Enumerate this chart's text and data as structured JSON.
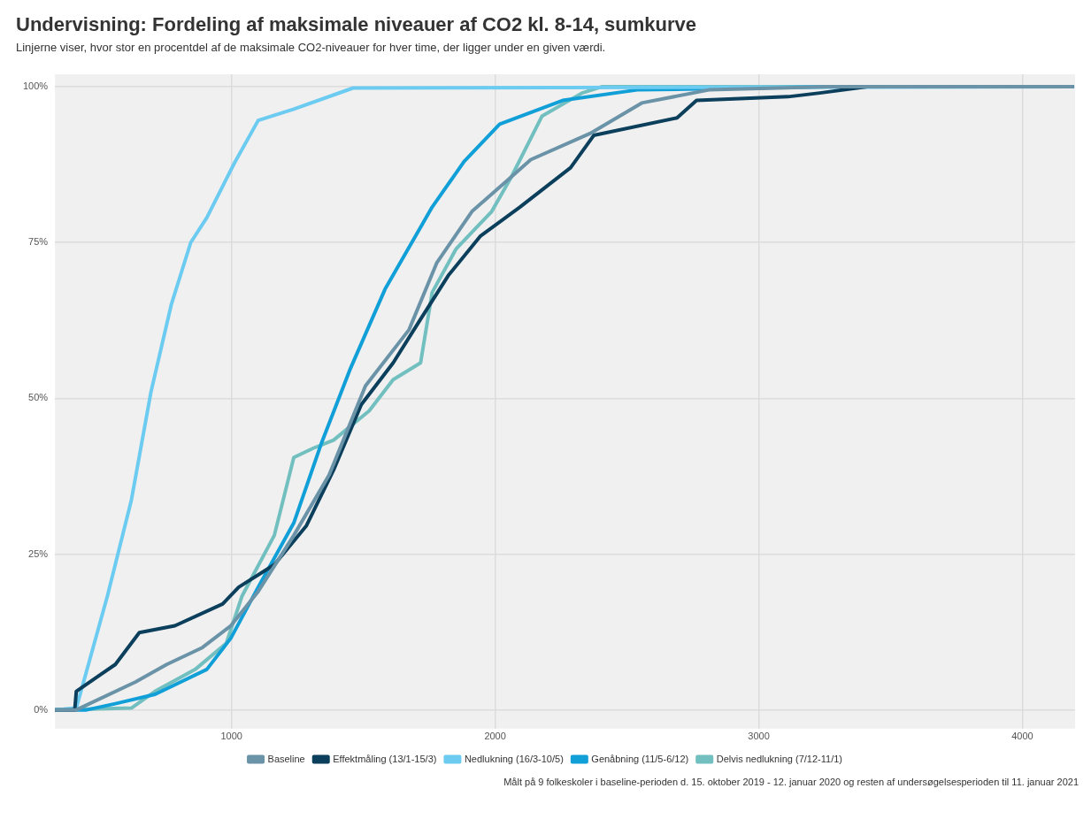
{
  "chart_data": {
    "type": "line",
    "title": "Undervisning: Fordeling af maksimale niveauer af CO2 kl. 8-14, sumkurve",
    "subtitle": "Linjerne viser, hvor stor en procentdel af de maksimale CO2-niveauer for hver time, der ligger under en given værdi.",
    "annotations": [
      "Målt på 9 folkeskoler i baseline-perioden d. 15. oktober 2019 - 12. januar 2020 og resten af undersøgelsesperioden til 11. januar 2021"
    ],
    "xlim": [
      330,
      4200
    ],
    "xticks": [
      1000,
      2000,
      3000,
      4000
    ],
    "ylim": [
      -3,
      102
    ],
    "yticks": [
      {
        "value": 0,
        "label": "0%"
      },
      {
        "value": 25,
        "label": "25%"
      },
      {
        "value": 50,
        "label": "50%"
      },
      {
        "value": 75,
        "label": "75%"
      },
      {
        "value": 100,
        "label": "100%"
      }
    ],
    "grid": true,
    "legend": "bottom",
    "marker": "none",
    "line_style": "solid",
    "series": [
      {
        "name": "Baseline",
        "color": "#6b93a8",
        "x": [
          330,
          411,
          636,
          754,
          889,
          997,
          1101,
          1236,
          1370,
          1508,
          1673,
          1778,
          1912,
          2047,
          2135,
          2360,
          2556,
          2811,
          3263,
          4190
        ],
        "values": [
          0,
          0,
          4.5,
          7.3,
          10,
          13.5,
          19,
          28,
          37.7,
          52,
          61,
          71.7,
          80,
          85,
          88.3,
          92.5,
          97.4,
          99.5,
          100,
          100
        ]
      },
      {
        "name": "Effektmåling (13/1-15/3)",
        "color": "#0b3f5c",
        "x": [
          330,
          405,
          411,
          559,
          650,
          785,
          966,
          1027,
          1162,
          1283,
          1387,
          1492,
          1613,
          1717,
          1822,
          1943,
          2094,
          2286,
          2374,
          2690,
          2764,
          3111,
          3232,
          3411,
          4190
        ],
        "values": [
          0,
          0,
          3,
          7.3,
          12.4,
          13.5,
          17,
          19.7,
          23.3,
          29.5,
          38.5,
          49,
          55.7,
          62.7,
          69.7,
          76,
          80.7,
          87,
          92.2,
          95,
          97.8,
          98.4,
          99,
          100,
          100
        ]
      },
      {
        "name": "Nedlukning (16/3-10/5)",
        "color": "#6ccbf0",
        "x": [
          330,
          411,
          529,
          620,
          694,
          771,
          845,
          906,
          1010,
          1101,
          1236,
          1461,
          4190
        ],
        "values": [
          0,
          0.3,
          18.3,
          33.7,
          51,
          65,
          75,
          79,
          87.7,
          94.6,
          96.4,
          99.8,
          100
        ]
      },
      {
        "name": "Genåbning (11/5-6/12)",
        "color": "#119fd8",
        "x": [
          330,
          450,
          559,
          710,
          906,
          997,
          1101,
          1236,
          1340,
          1448,
          1582,
          1761,
          1882,
          2017,
          2256,
          2539,
          3263,
          4190
        ],
        "values": [
          0,
          0,
          1,
          2.5,
          6.5,
          11.5,
          19.7,
          30,
          42.7,
          54.5,
          67.5,
          80.7,
          88,
          94,
          97.8,
          99.5,
          100,
          100
        ]
      },
      {
        "name": "Delvis nedlukning (7/12-11/1)",
        "color": "#72bfc0",
        "x": [
          330,
          620,
          710,
          862,
          980,
          1040,
          1162,
          1236,
          1310,
          1387,
          1522,
          1613,
          1717,
          1761,
          1852,
          1987,
          2061,
          2178,
          2330,
          2404,
          4190
        ],
        "values": [
          0,
          0.3,
          3,
          6.5,
          10.7,
          18.3,
          28,
          40.5,
          42,
          43.3,
          48,
          53,
          55.7,
          67,
          74,
          80,
          85.5,
          95.3,
          99,
          100,
          100
        ]
      }
    ]
  }
}
